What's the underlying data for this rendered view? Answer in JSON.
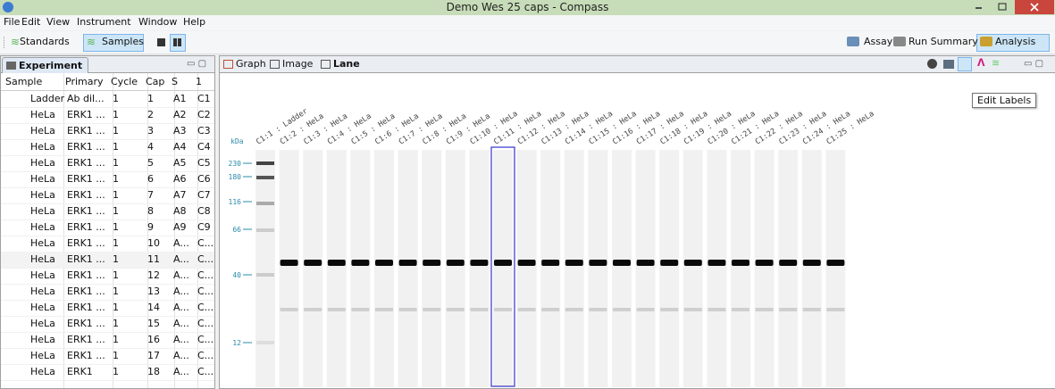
{
  "window": {
    "title": "Demo Wes 25 caps - Compass"
  },
  "menu": [
    "File",
    "Edit",
    "View",
    "Instrument",
    "Window",
    "Help"
  ],
  "toolbar": {
    "left": [
      "Standards",
      "Samples"
    ],
    "right": [
      "Assay",
      "Run Summary",
      "Analysis"
    ]
  },
  "experiment": {
    "tab": "Experiment",
    "columns": [
      "Sample",
      "Primary",
      "Cycle",
      "Cap",
      "S",
      "1"
    ],
    "rows": [
      [
        "Ladder",
        "Ab dil...",
        "1",
        "1",
        "A1",
        "C1"
      ],
      [
        "HeLa",
        "ERK1 ...",
        "1",
        "2",
        "A2",
        "C2"
      ],
      [
        "HeLa",
        "ERK1 ...",
        "1",
        "3",
        "A3",
        "C3"
      ],
      [
        "HeLa",
        "ERK1 ...",
        "1",
        "4",
        "A4",
        "C4"
      ],
      [
        "HeLa",
        "ERK1 ...",
        "1",
        "5",
        "A5",
        "C5"
      ],
      [
        "HeLa",
        "ERK1 ...",
        "1",
        "6",
        "A6",
        "C6"
      ],
      [
        "HeLa",
        "ERK1 ...",
        "1",
        "7",
        "A7",
        "C7"
      ],
      [
        "HeLa",
        "ERK1 ...",
        "1",
        "8",
        "A8",
        "C8"
      ],
      [
        "HeLa",
        "ERK1 ...",
        "1",
        "9",
        "A9",
        "C9"
      ],
      [
        "HeLa",
        "ERK1 ...",
        "1",
        "10",
        "A...",
        "C..."
      ],
      [
        "HeLa",
        "ERK1 ...",
        "1",
        "11",
        "A...",
        "C..."
      ],
      [
        "HeLa",
        "ERK1 ...",
        "1",
        "12",
        "A...",
        "C..."
      ],
      [
        "HeLa",
        "ERK1 ...",
        "1",
        "13",
        "A...",
        "C..."
      ],
      [
        "HeLa",
        "ERK1 ...",
        "1",
        "14",
        "A...",
        "C..."
      ],
      [
        "HeLa",
        "ERK1 ...",
        "1",
        "15",
        "A...",
        "C..."
      ],
      [
        "HeLa",
        "ERK1 ...",
        "1",
        "16",
        "A...",
        "C..."
      ],
      [
        "HeLa",
        "ERK1 ...",
        "1",
        "17",
        "A...",
        "C..."
      ],
      [
        "HeLa",
        "ERK1",
        "1",
        "18",
        "A...",
        "C..."
      ]
    ]
  },
  "viewer": {
    "tabs": [
      "Graph",
      "Image",
      "Lane"
    ],
    "tooltip": "Edit Labels",
    "axis_unit": "kDa",
    "axis_ticks": [
      "230",
      "180",
      "116",
      "66",
      "40",
      "12"
    ],
    "lanes": [
      "C1:1 : Ladder",
      "C1:2 : HeLa",
      "C1:3 : HeLa",
      "C1:4 : HeLa",
      "C1:5 : HeLa",
      "C1:6 : HeLa",
      "C1:7 : HeLa",
      "C1:8 : HeLa",
      "C1:9 : HeLa",
      "C1:10 : HeLa",
      "C1:11 : HeLa",
      "C1:12 : HeLa",
      "C1:13 : HeLa",
      "C1:14 : HeLa",
      "C1:15 : HeLa",
      "C1:16 : HeLa",
      "C1:17 : HeLa",
      "C1:18 : HeLa",
      "C1:19 : HeLa",
      "C1:20 : HeLa",
      "C1:21 : HeLa",
      "C1:22 : HeLa",
      "C1:23 : HeLa",
      "C1:24 : HeLa",
      "C1:25 : HeLa"
    ]
  }
}
